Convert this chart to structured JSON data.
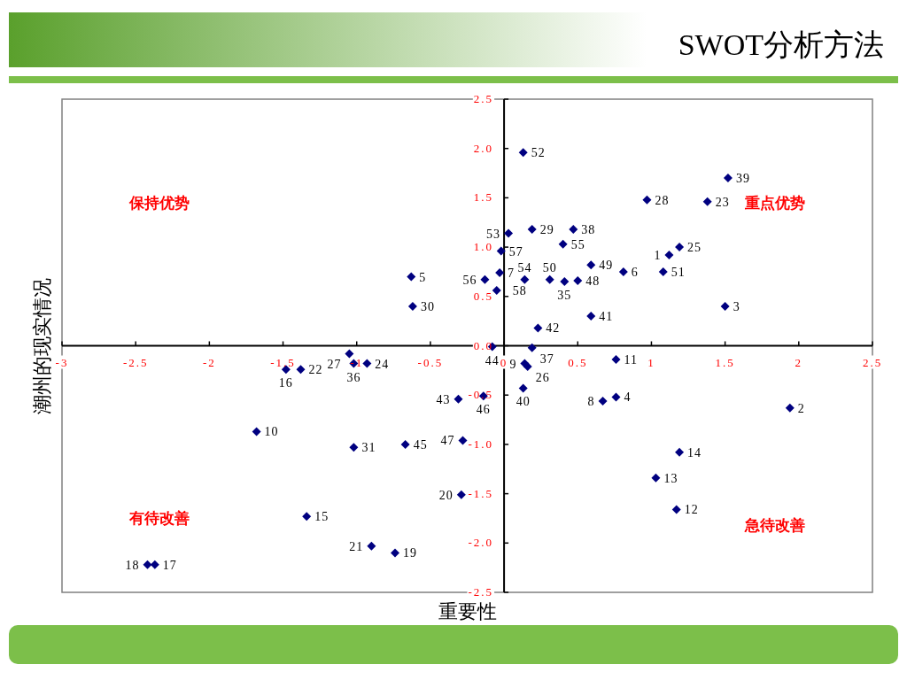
{
  "chart_data": {
    "type": "scatter",
    "title": "SWOT分析方法",
    "xlabel": "重要性",
    "ylabel": "潮州的现实情况",
    "annotations": [
      "保持优势",
      "重点优势",
      "有待改善",
      "急待改善",
      {
        "text": "52",
        "x": 0.13,
        "y": 1.96
      },
      {
        "text": "39",
        "x": 1.52,
        "y": 1.7
      },
      {
        "text": "28",
        "x": 0.97,
        "y": 1.48
      },
      {
        "text": "23",
        "x": 1.38,
        "y": 1.46
      },
      {
        "text": "29",
        "x": 0.19,
        "y": 1.18
      },
      {
        "text": "38",
        "x": 0.47,
        "y": 1.18
      },
      {
        "text": "53",
        "x": 0.03,
        "y": 1.14
      },
      {
        "text": "57",
        "x": -0.02,
        "y": 0.96
      },
      {
        "text": "55",
        "x": 0.4,
        "y": 1.03
      },
      {
        "text": "25",
        "x": 1.19,
        "y": 1.0
      },
      {
        "text": "1",
        "x": 1.12,
        "y": 0.92
      },
      {
        "text": "49",
        "x": 0.59,
        "y": 0.82
      },
      {
        "text": "6",
        "x": 0.81,
        "y": 0.75
      },
      {
        "text": "51",
        "x": 1.08,
        "y": 0.75
      },
      {
        "text": "5",
        "x": -0.63,
        "y": 0.7
      },
      {
        "text": "7",
        "x": -0.03,
        "y": 0.74
      },
      {
        "text": "56",
        "x": -0.13,
        "y": 0.67
      },
      {
        "text": "54",
        "x": 0.14,
        "y": 0.67
      },
      {
        "text": "50",
        "x": 0.31,
        "y": 0.67
      },
      {
        "text": "35",
        "x": 0.41,
        "y": 0.65
      },
      {
        "text": "48",
        "x": 0.5,
        "y": 0.66
      },
      {
        "text": "58",
        "x": -0.05,
        "y": 0.56
      },
      {
        "text": "30",
        "x": -0.62,
        "y": 0.4
      },
      {
        "text": "3",
        "x": 1.5,
        "y": 0.4
      },
      {
        "text": "41",
        "x": 0.59,
        "y": 0.3
      },
      {
        "text": "42",
        "x": 0.23,
        "y": 0.18
      },
      {
        "text": "44",
        "x": -0.08,
        "y": -0.01
      },
      {
        "text": "37",
        "x": 0.19,
        "y": -0.02
      },
      {
        "text": "27",
        "x": -1.05,
        "y": -0.08
      },
      {
        "text": "36",
        "x": -1.02,
        "y": -0.18
      },
      {
        "text": "24",
        "x": -0.93,
        "y": -0.18
      },
      {
        "text": "16",
        "x": -1.48,
        "y": -0.24
      },
      {
        "text": "22",
        "x": -1.38,
        "y": -0.24
      },
      {
        "text": "9",
        "x": 0.14,
        "y": -0.18
      },
      {
        "text": "26",
        "x": 0.16,
        "y": -0.21
      },
      {
        "text": "11",
        "x": 0.76,
        "y": -0.14
      },
      {
        "text": "40",
        "x": 0.13,
        "y": -0.43
      },
      {
        "text": "4",
        "x": 0.76,
        "y": -0.52
      },
      {
        "text": "8",
        "x": 0.67,
        "y": -0.56
      },
      {
        "text": "46",
        "x": -0.14,
        "y": -0.51
      },
      {
        "text": "43",
        "x": -0.31,
        "y": -0.54
      },
      {
        "text": "2",
        "x": 1.94,
        "y": -0.63
      },
      {
        "text": "10",
        "x": -1.68,
        "y": -0.87
      },
      {
        "text": "47",
        "x": -0.28,
        "y": -0.96
      },
      {
        "text": "45",
        "x": -0.67,
        "y": -1.0
      },
      {
        "text": "31",
        "x": -1.02,
        "y": -1.03
      },
      {
        "text": "14",
        "x": 1.19,
        "y": -1.08
      },
      {
        "text": "13",
        "x": 1.03,
        "y": -1.34
      },
      {
        "text": "20",
        "x": -0.29,
        "y": -1.51
      },
      {
        "text": "12",
        "x": 1.17,
        "y": -1.66
      },
      {
        "text": "15",
        "x": -1.34,
        "y": -1.73
      },
      {
        "text": "21",
        "x": -0.9,
        "y": -2.03
      },
      {
        "text": "19",
        "x": -0.74,
        "y": -2.1
      },
      {
        "text": "18",
        "x": -2.42,
        "y": -2.22
      },
      {
        "text": "17",
        "x": -2.37,
        "y": -2.22
      }
    ],
    "xlim": [
      -3,
      2.5
    ],
    "ylim": [
      -2.5,
      2.5
    ],
    "xticks": [
      {
        "value": -3,
        "label": "-3"
      },
      {
        "value": -2.5,
        "label": "-2.5"
      },
      {
        "value": -2,
        "label": "-2"
      },
      {
        "value": -1.5,
        "label": "-1.5"
      },
      {
        "value": -1,
        "label": "-1"
      },
      {
        "value": -0.5,
        "label": "-0.5"
      },
      0,
      {
        "value": 0.5,
        "label": "0.5"
      },
      1,
      {
        "value": 1.5,
        "label": "1.5"
      },
      2,
      {
        "value": 2.5,
        "label": "2.5"
      }
    ],
    "yticks": [
      {
        "value": 2.5,
        "label": "2.5"
      },
      {
        "value": 2,
        "label": "2.0"
      },
      {
        "value": 1.5,
        "label": "1.5"
      },
      {
        "value": 1,
        "label": "1.0"
      },
      {
        "value": 0.5,
        "label": "0.5"
      },
      {
        "value": 0,
        "label": "0.0"
      },
      {
        "value": -0.5,
        "label": "-0.5"
      },
      {
        "value": -1,
        "label": "-1.0"
      },
      {
        "value": -1.5,
        "label": "-1.5"
      },
      {
        "value": -2,
        "label": "-2.0"
      },
      {
        "value": -2.5,
        "label": "-2.5"
      }
    ],
    "grid": false,
    "marker": "diamond",
    "series": [
      {
        "color": "#000080",
        "x": [
          0.13,
          1.52,
          0.97,
          1.38,
          0.19,
          0.47,
          0.03,
          -0.02,
          0.4,
          1.19,
          1.12,
          0.59,
          0.81,
          1.08,
          -0.63,
          -0.03,
          -0.13,
          0.14,
          0.31,
          0.41,
          0.5,
          -0.05,
          -0.62,
          1.5,
          0.59,
          0.23,
          -0.08,
          0.19,
          -1.05,
          -1.02,
          -0.93,
          -1.48,
          -1.38,
          0.14,
          0.16,
          0.76,
          0.13,
          0.76,
          0.67,
          -0.14,
          -0.31,
          1.94,
          -1.68,
          -0.28,
          -0.67,
          -1.02,
          1.19,
          1.03,
          -0.29,
          1.17,
          -1.34,
          -0.9,
          -0.74,
          -2.42,
          -2.37
        ],
        "values": [
          1.96,
          1.7,
          1.48,
          1.46,
          1.18,
          1.18,
          1.14,
          0.96,
          1.03,
          1.0,
          0.92,
          0.82,
          0.75,
          0.75,
          0.7,
          0.74,
          0.67,
          0.67,
          0.67,
          0.65,
          0.66,
          0.56,
          0.4,
          0.4,
          0.3,
          0.18,
          -0.01,
          -0.02,
          -0.08,
          -0.18,
          -0.18,
          -0.24,
          -0.24,
          -0.18,
          -0.21,
          -0.14,
          -0.43,
          -0.52,
          -0.56,
          -0.51,
          -0.54,
          -0.63,
          -0.87,
          -0.96,
          -1.0,
          -1.03,
          -1.08,
          -1.34,
          -1.51,
          -1.66,
          -1.73,
          -2.03,
          -2.1,
          -2.22,
          -2.22
        ]
      }
    ]
  }
}
